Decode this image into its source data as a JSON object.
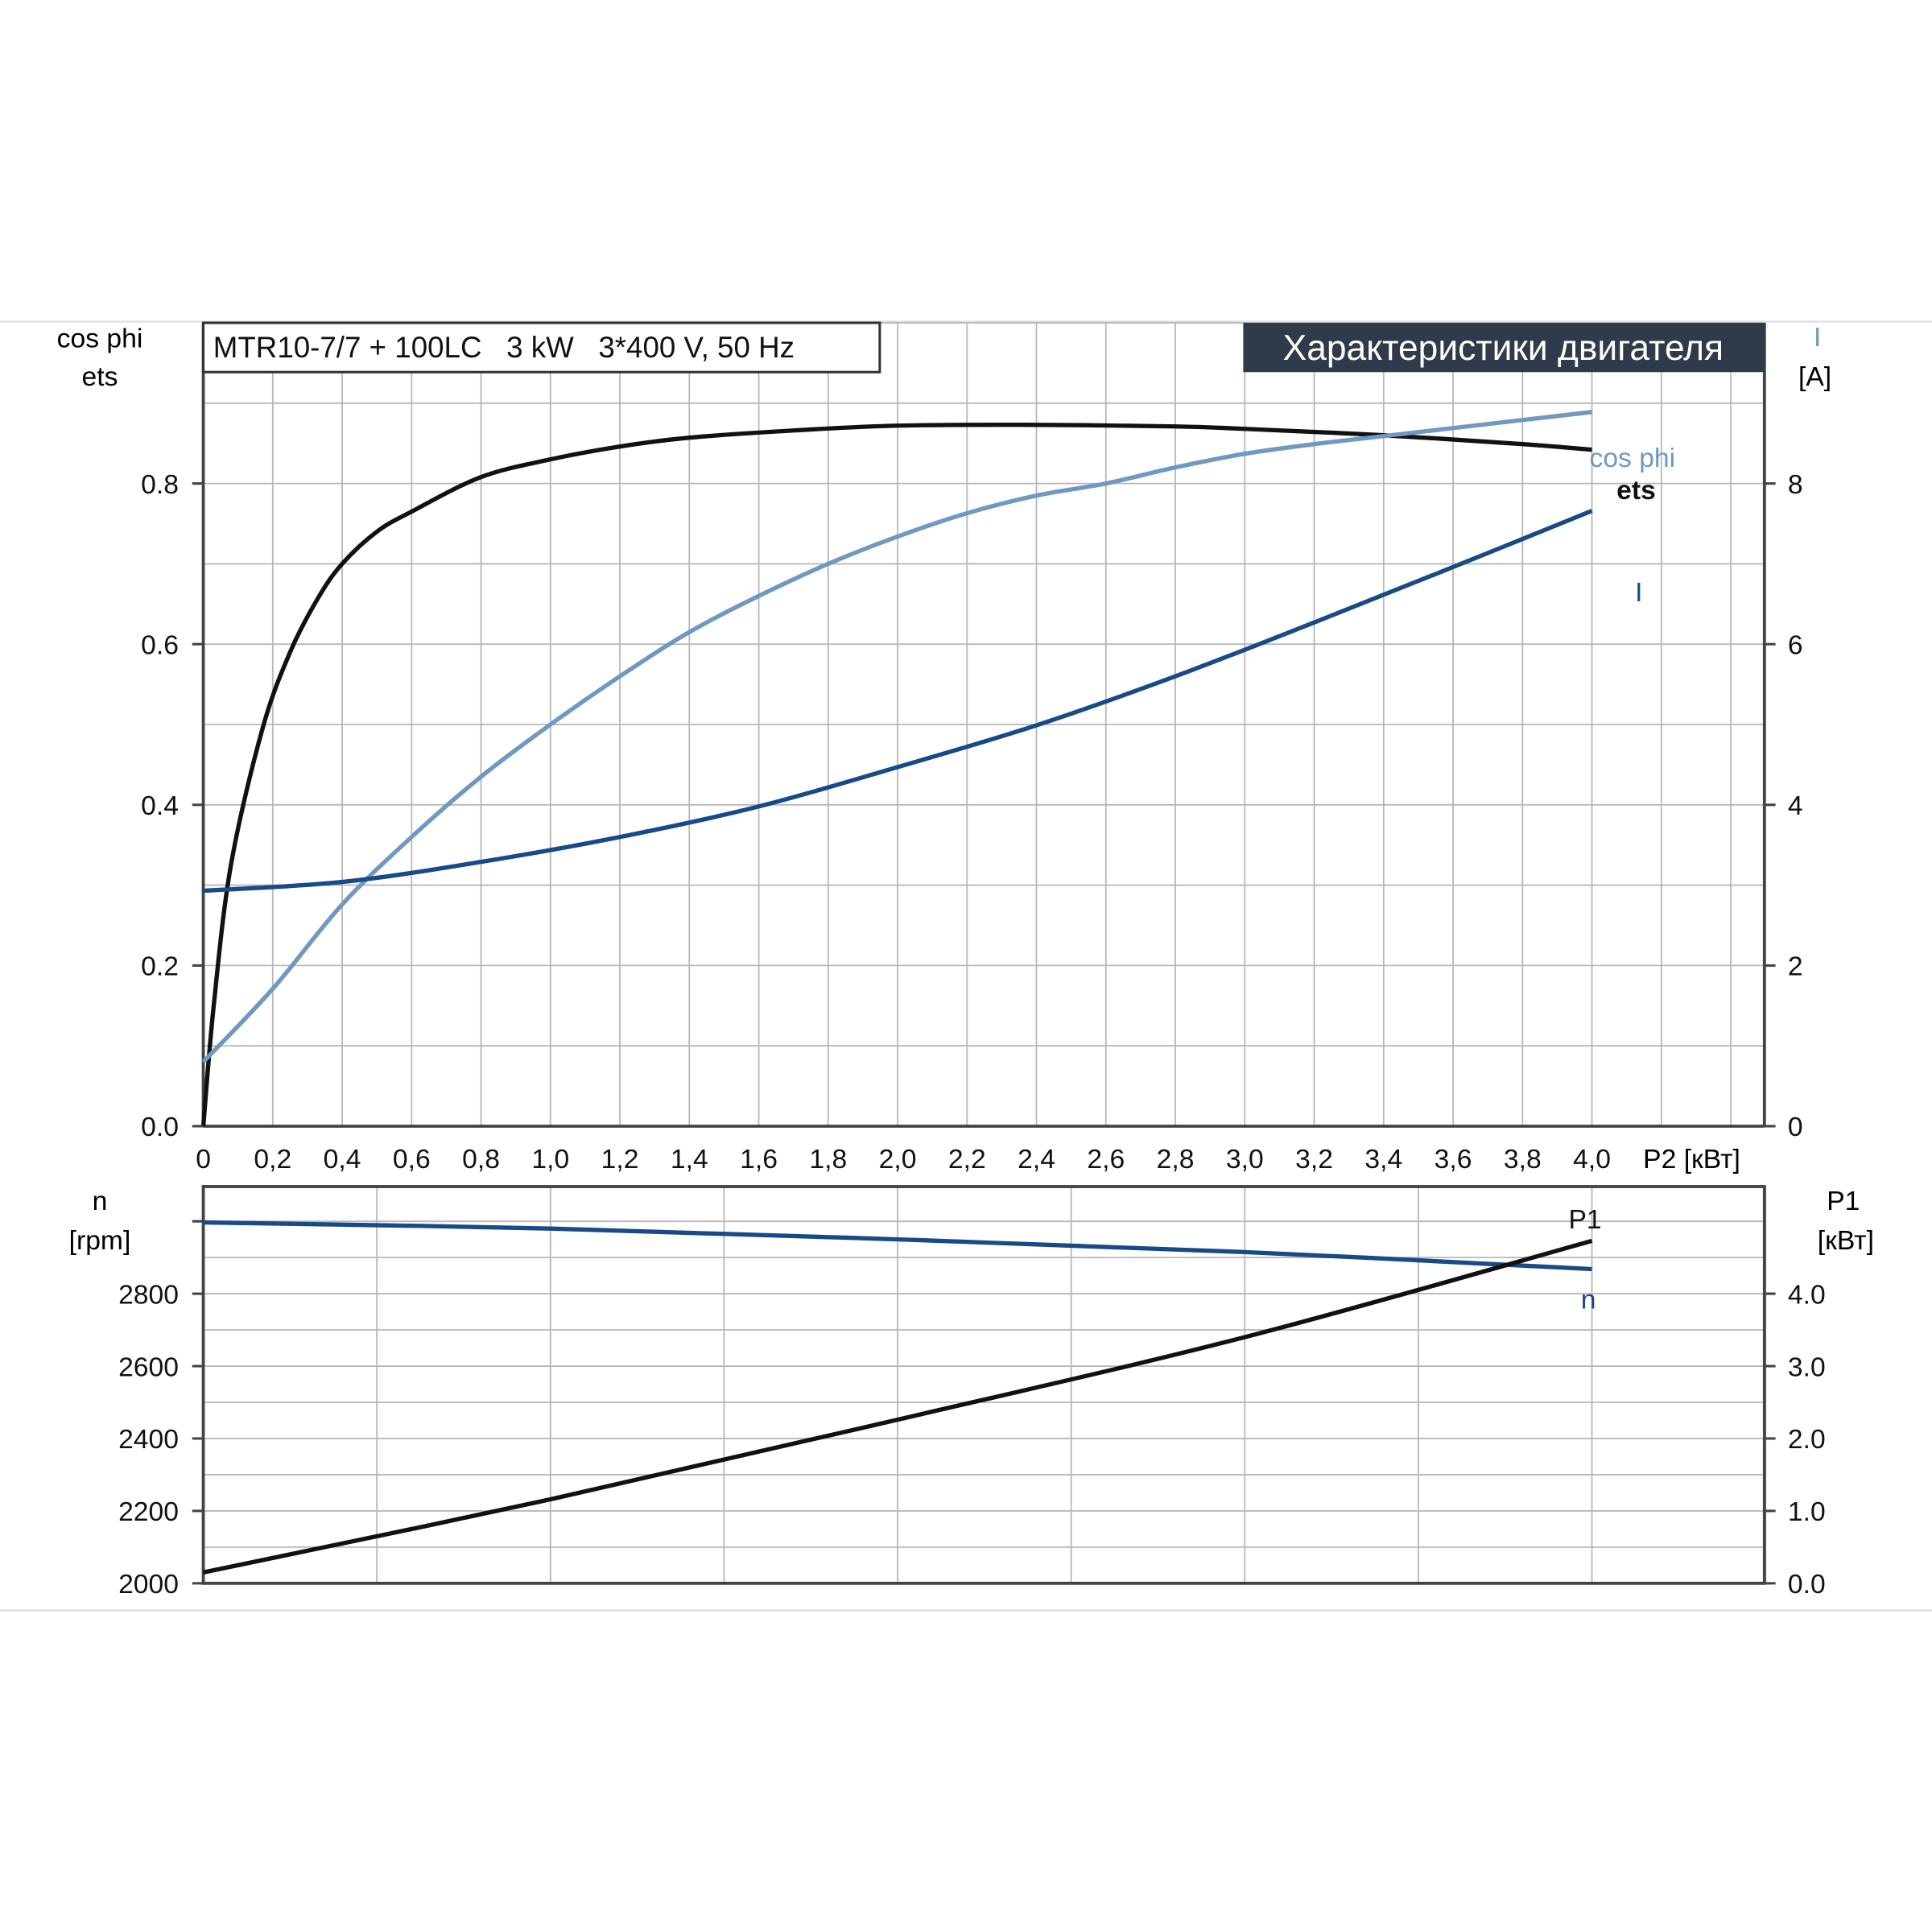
{
  "header": {
    "model": "MTR10-7/7 + 100LC   3 kW   3*400 V, 50 Hz",
    "title": "Характеристики двигателя"
  },
  "colors": {
    "ets": "#111111",
    "cos_phi": "#7098c0",
    "I": "#174a86",
    "n": "#174a86",
    "P1": "#111111",
    "header_bg": "#2f3b4b"
  },
  "chart_data": [
    {
      "type": "line",
      "xlabel": "P2 [кВт]",
      "ylabel_left": [
        "cos phi",
        "ets"
      ],
      "ylabel_right": [
        "I",
        "[A]"
      ],
      "xlim": [
        0,
        4.5
      ],
      "ylim_left": [
        0,
        1.0
      ],
      "ylim_right": [
        0,
        10
      ],
      "grid": true,
      "x_ticks": [
        "0",
        "0,2",
        "0,4",
        "0,6",
        "0,8",
        "1,0",
        "1,2",
        "1,4",
        "1,6",
        "1,8",
        "2,0",
        "2,2",
        "2,4",
        "2,6",
        "2,8",
        "3,0",
        "3,2",
        "3,4",
        "3,6",
        "3,8",
        "4,0"
      ],
      "y_ticks_left": [
        "0.0",
        "0.2",
        "0.4",
        "0.6",
        "0.8"
      ],
      "y_ticks_right": [
        "0",
        "2",
        "4",
        "6",
        "8"
      ],
      "series": [
        {
          "name": "ets",
          "axis": "left",
          "x": [
            0,
            0.03,
            0.08,
            0.17,
            0.25,
            0.33,
            0.4,
            0.5,
            0.6,
            0.8,
            1.0,
            1.2,
            1.4,
            1.7,
            2.0,
            2.4,
            2.8,
            3.0,
            3.4,
            3.8,
            4.0
          ],
          "y": [
            0,
            0.15,
            0.326,
            0.494,
            0.59,
            0.657,
            0.7,
            0.74,
            0.765,
            0.808,
            0.83,
            0.846,
            0.857,
            0.866,
            0.872,
            0.873,
            0.871,
            0.868,
            0.86,
            0.849,
            0.842
          ]
        },
        {
          "name": "cos phi",
          "axis": "left",
          "x": [
            0,
            0.2,
            0.4,
            0.6,
            0.8,
            1.0,
            1.2,
            1.4,
            1.6,
            1.8,
            2.0,
            2.2,
            2.4,
            2.6,
            2.8,
            3.0,
            3.2,
            3.4,
            3.6,
            3.8,
            4.0
          ],
          "y": [
            0.08,
            0.171,
            0.276,
            0.36,
            0.435,
            0.5,
            0.56,
            0.615,
            0.66,
            0.7,
            0.734,
            0.763,
            0.785,
            0.8,
            0.82,
            0.837,
            0.849,
            0.859,
            0.869,
            0.879,
            0.889
          ]
        },
        {
          "name": "I",
          "axis": "right",
          "x": [
            0,
            0.4,
            0.8,
            1.2,
            1.6,
            2.0,
            2.4,
            2.8,
            3.2,
            3.6,
            4.0
          ],
          "y": [
            2.93,
            3.04,
            3.29,
            3.6,
            3.98,
            4.47,
            4.99,
            5.6,
            6.27,
            6.96,
            7.66
          ]
        }
      ]
    },
    {
      "type": "line",
      "ylabel_left": [
        "n",
        "[rpm]"
      ],
      "ylabel_right": [
        "P1",
        "[кВт]"
      ],
      "xlim": [
        0,
        4.5
      ],
      "ylim_left": [
        2000,
        3096
      ],
      "ylim_right": [
        0,
        5.48
      ],
      "grid": true,
      "y_ticks_left": [
        "2000",
        "2200",
        "2400",
        "2600",
        "2800"
      ],
      "y_ticks_right": [
        "0.0",
        "1.0",
        "2.0",
        "3.0",
        "4.0"
      ],
      "series": [
        {
          "name": "n",
          "axis": "left",
          "x": [
            0,
            1.0,
            2.0,
            3.0,
            4.0
          ],
          "y": [
            2997,
            2980,
            2950,
            2915,
            2868
          ]
        },
        {
          "name": "P1",
          "axis": "right",
          "x": [
            0,
            1.0,
            2.0,
            3.0,
            4.0
          ],
          "y": [
            0.15,
            1.16,
            2.26,
            3.4,
            4.73
          ]
        }
      ]
    }
  ]
}
